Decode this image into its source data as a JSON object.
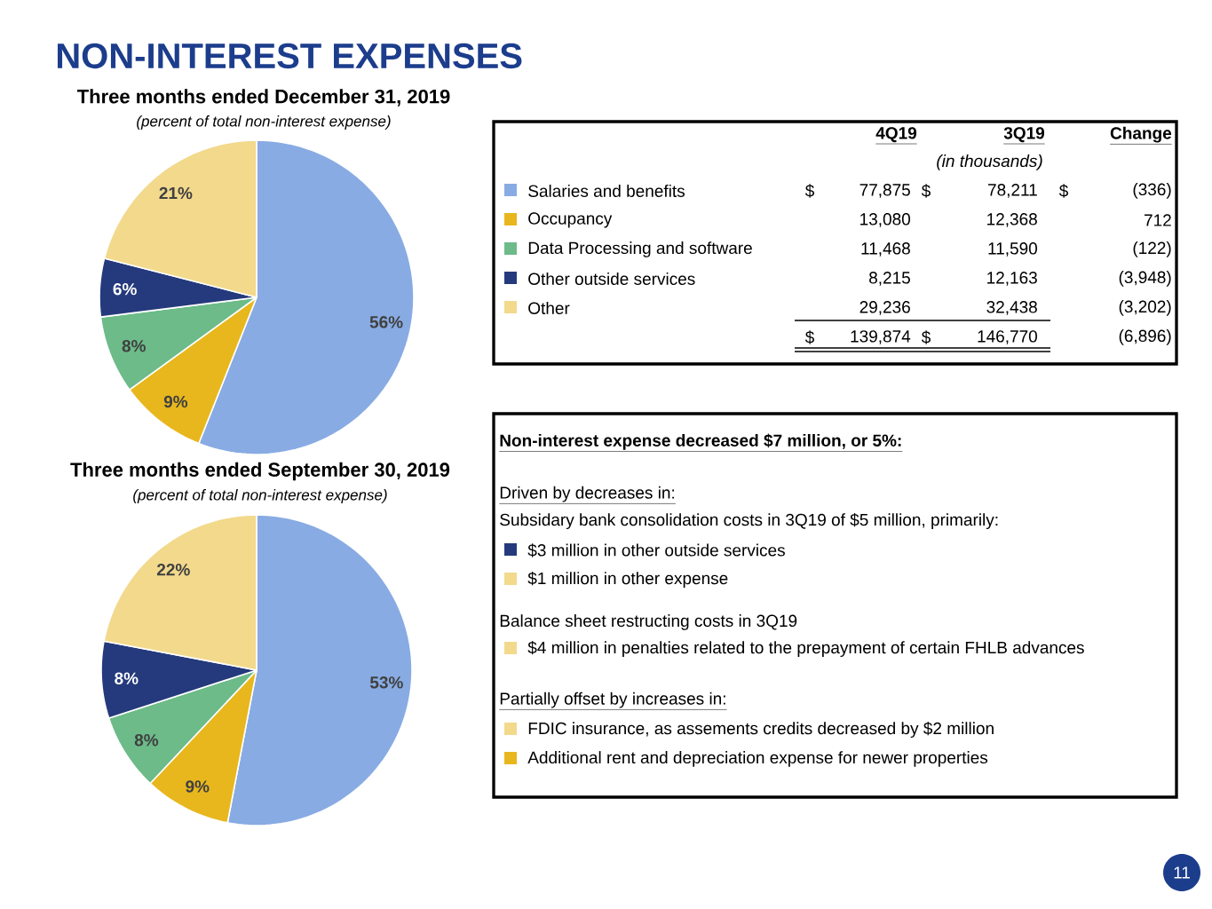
{
  "chart_data": [
    {
      "type": "pie",
      "title": "NON-INTEREST EXPENSES",
      "subtitle": "Three months ended December 31, 2019",
      "annotations": [
        "(percent of total non-interest expense)"
      ],
      "categories": [
        "Salaries and benefits",
        "Occupancy",
        "Data Processing and software",
        "Other outside services",
        "Other"
      ],
      "values": [
        56,
        9,
        8,
        6,
        21
      ],
      "value_labels": [
        "56%",
        "9%",
        "8%",
        "6%",
        "21%"
      ],
      "colors": [
        "#88abe3",
        "#e8b71d",
        "#6cbb89",
        "#253a7c",
        "#f2d98c"
      ],
      "legend": "right"
    },
    {
      "type": "pie",
      "title": "Three months ended September 30, 2019",
      "annotations": [
        "(percent of total non-interest expense)"
      ],
      "categories": [
        null,
        null,
        null,
        null,
        null
      ],
      "values": [
        53,
        9,
        8,
        8,
        22
      ],
      "value_labels": [
        "53%",
        "9%",
        "8%",
        "8%",
        "22%"
      ],
      "colors": [
        "#88abe3",
        "#e8b71d",
        "#6cbb89",
        "#253a7c",
        "#f2d98c"
      ]
    },
    {
      "type": "other",
      "annotations": [
        "4Q19",
        "3Q19",
        "Change",
        "(in thousands)",
        "$",
        "77,875",
        "$",
        "78,211",
        "$",
        "(336)",
        "13,080",
        "12,368",
        "712",
        "11,468",
        "11,590",
        "(122)",
        "8,215",
        "12,163",
        "(3,948)",
        "29,236",
        "32,438",
        "(3,202)",
        "$",
        "139,874",
        "$",
        "146,770",
        "(6,896)"
      ]
    },
    {
      "type": "other",
      "annotations": [
        "Non-interest expense decreased $7 million, or 5%:",
        "Driven by decreases in:",
        "Subsidary bank consolidation costs in 3Q19 of $5 million, primarily:",
        "$3 million in other outside services",
        "$1 million in other expense",
        "Balance sheet restructing costs in 3Q19",
        "$4 million in penalties related to the prepayment of certain FHLB advances",
        "Partially offset by increases in:",
        "FDIC insurance, as assements credits decreased by $2 million",
        "Additional rent and depreciation expense for newer properties",
        "11"
      ]
    }
  ]
}
